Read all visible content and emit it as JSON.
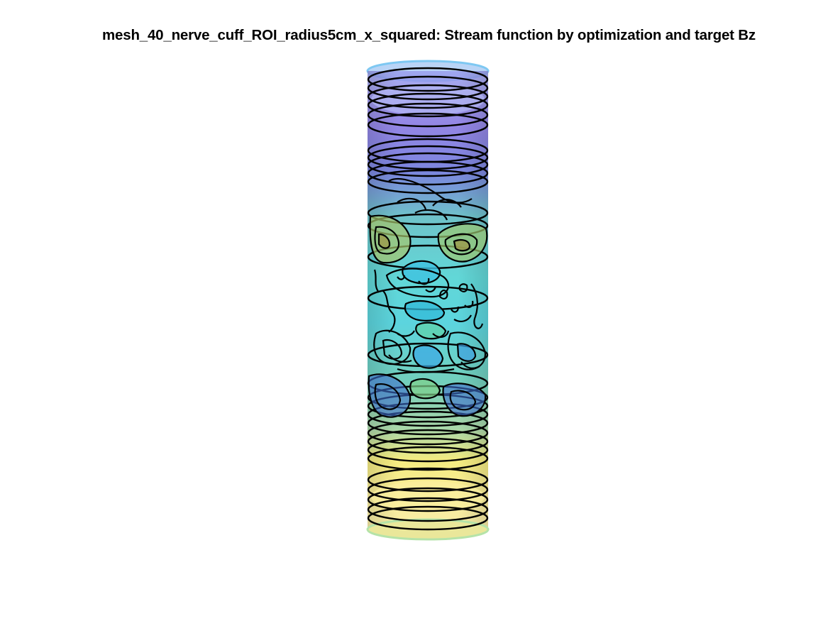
{
  "figure": {
    "title": "mesh_40_nerve_cuff_ROI_radius5cm_x_squared: Stream function by optimization and target Bz"
  },
  "surface": {
    "shape": "cylinder",
    "colormap": [
      "#3e1ea3",
      "#3b4ce0",
      "#2f8df0",
      "#2bc4c2",
      "#5bd08e",
      "#c8c63e",
      "#f6e82a"
    ],
    "colormap_name": "parula",
    "contour_color": "#000000",
    "rim_color": "#7ec8f2"
  }
}
